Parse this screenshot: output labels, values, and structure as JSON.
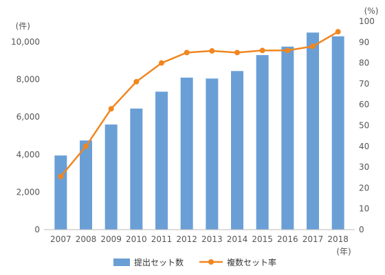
{
  "chart_data": {
    "type": "bar",
    "categories": [
      "2007",
      "2008",
      "2009",
      "2010",
      "2011",
      "2012",
      "2013",
      "2014",
      "2015",
      "2016",
      "2017",
      "2018"
    ],
    "x_unit_label": "(年)",
    "series": [
      {
        "name": "提出セット数",
        "kind": "bar",
        "axis": "left",
        "color": "#6a9fd6",
        "values": [
          3950,
          4750,
          5600,
          6450,
          7350,
          8100,
          8050,
          8450,
          9300,
          9750,
          10500,
          10300
        ]
      },
      {
        "name": "複数セット率",
        "kind": "line",
        "axis": "right",
        "color": "#f0861f",
        "values": [
          25.5,
          40,
          58,
          71,
          80,
          85,
          85.8,
          85,
          86,
          86,
          88,
          95
        ]
      }
    ],
    "y_left": {
      "unit_label": "(件)",
      "ylim": [
        0,
        11000
      ],
      "ticks": [
        0,
        2000,
        4000,
        6000,
        8000,
        10000
      ],
      "tick_labels": [
        "0",
        "2,000",
        "4,000",
        "6,000",
        "8,000",
        "10,000"
      ]
    },
    "y_right": {
      "unit_label": "(%)",
      "ylim": [
        0,
        100
      ],
      "ticks": [
        0,
        10,
        20,
        30,
        40,
        50,
        60,
        70,
        80,
        90,
        100
      ],
      "tick_labels": [
        "0",
        "10",
        "20",
        "30",
        "40",
        "50",
        "60",
        "70",
        "80",
        "90",
        "100"
      ]
    },
    "grid": false,
    "legend_position": "bottom"
  }
}
